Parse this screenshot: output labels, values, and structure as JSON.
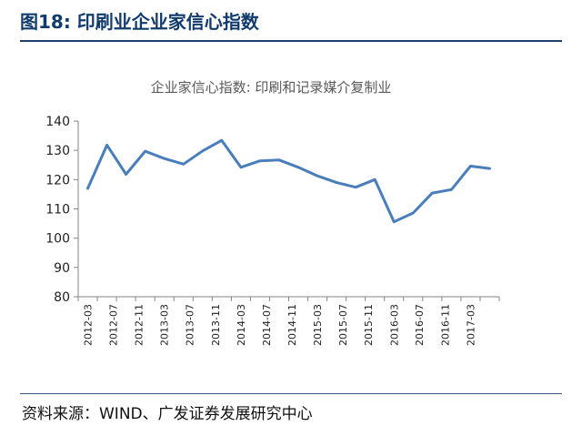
{
  "figure": {
    "title": "图18:  印刷业企业家信心指数",
    "source": "资料来源：WIND、广发证券发展研究中心"
  },
  "chart_data": {
    "type": "line",
    "title": "企业家信心指数: 印刷和记录媒介复制业",
    "xlabel": "",
    "ylabel": "",
    "ylim": [
      80,
      140
    ],
    "yticks": [
      80,
      90,
      100,
      110,
      120,
      130,
      140
    ],
    "x_tick_labels": [
      "2012-03",
      "2012-07",
      "2012-11",
      "2013-03",
      "2013-07",
      "2013-11",
      "2014-03",
      "2014-07",
      "2014-11",
      "2015-03",
      "2015-07",
      "2015-11",
      "2016-03",
      "2016-07",
      "2016-11",
      "2017-03"
    ],
    "x": [
      "2012-03",
      "2012-06",
      "2012-09",
      "2012-12",
      "2013-03",
      "2013-06",
      "2013-09",
      "2013-12",
      "2014-03",
      "2014-06",
      "2014-09",
      "2014-12",
      "2015-03",
      "2015-06",
      "2015-09",
      "2015-12",
      "2016-03",
      "2016-06",
      "2016-09",
      "2016-12",
      "2017-03",
      "2017-06"
    ],
    "series": [
      {
        "values": [
          117,
          131.8,
          121.8,
          129.7,
          127.2,
          125.3,
          129.8,
          133.4,
          124.2,
          126.4,
          126.7,
          124.2,
          121.3,
          119,
          117.4,
          120,
          105.6,
          108.6,
          115.4,
          116.6,
          124.6,
          123.8
        ],
        "color": "#4a7ebb"
      }
    ],
    "grid": false,
    "legend": "none"
  }
}
